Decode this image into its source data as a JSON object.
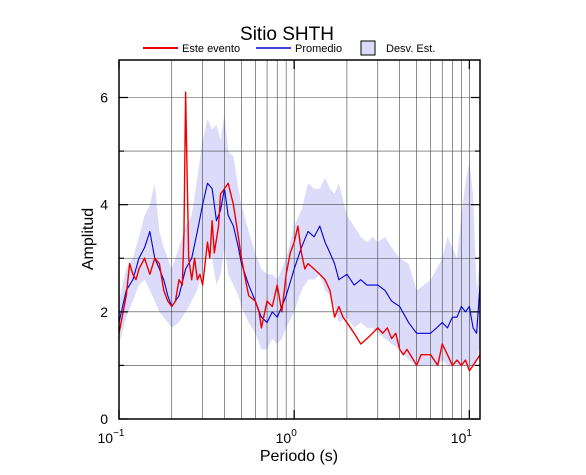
{
  "chart_data": {
    "type": "line",
    "title": "Sitio SHTH",
    "xlabel": "Periodo (s)",
    "ylabel": "Amplitud",
    "xscale": "log",
    "xlim": [
      0.1,
      11.5
    ],
    "ylim": [
      0,
      6.7
    ],
    "grid": true,
    "legend_position": "top",
    "x_tick_labels": [
      {
        "value": 0.1,
        "base": "10",
        "exp": "−1"
      },
      {
        "value": 1,
        "base": "10",
        "exp": "0"
      },
      {
        "value": 10,
        "base": "10",
        "exp": "1"
      }
    ],
    "y_ticks": [
      0,
      2,
      4,
      6
    ],
    "legend": {
      "evento_label": "Este evento",
      "promedio_label": "Promedio",
      "desv_label": "Desv. Est."
    },
    "colors": {
      "evento": "#ee0000",
      "promedio": "#0000dd",
      "desv_fill": "#dcdcfa"
    },
    "series": [
      {
        "name": "Este evento",
        "x": [
          0.1,
          0.11,
          0.115,
          0.12,
          0.125,
          0.13,
          0.14,
          0.15,
          0.16,
          0.17,
          0.18,
          0.19,
          0.2,
          0.21,
          0.22,
          0.23,
          0.235,
          0.24,
          0.245,
          0.25,
          0.26,
          0.27,
          0.28,
          0.29,
          0.3,
          0.31,
          0.32,
          0.33,
          0.34,
          0.35,
          0.37,
          0.38,
          0.4,
          0.42,
          0.45,
          0.48,
          0.5,
          0.52,
          0.55,
          0.6,
          0.63,
          0.65,
          0.7,
          0.75,
          0.8,
          0.85,
          0.9,
          0.95,
          1.0,
          1.05,
          1.1,
          1.15,
          1.2,
          1.3,
          1.4,
          1.5,
          1.6,
          1.7,
          1.8,
          1.9,
          2.0,
          2.2,
          2.4,
          2.6,
          2.8,
          3.0,
          3.2,
          3.4,
          3.6,
          3.8,
          4.0,
          4.2,
          4.4,
          4.6,
          4.8,
          5.0,
          5.3,
          5.6,
          6.0,
          6.3,
          6.6,
          7.0,
          7.5,
          8.0,
          8.5,
          9.0,
          9.5,
          10.0,
          10.5,
          11.0,
          11.5
        ],
        "y": [
          1.6,
          2.3,
          2.9,
          2.7,
          2.6,
          2.8,
          3.0,
          2.7,
          3.0,
          2.9,
          2.4,
          2.2,
          2.1,
          2.2,
          2.6,
          2.5,
          3.5,
          6.1,
          4.5,
          3.0,
          2.6,
          3.0,
          2.6,
          2.7,
          2.5,
          2.9,
          3.3,
          3.0,
          3.7,
          3.1,
          3.6,
          4.2,
          4.3,
          4.4,
          4.0,
          3.4,
          3.0,
          2.7,
          2.3,
          2.2,
          2.0,
          1.7,
          2.2,
          2.1,
          2.5,
          2.0,
          2.7,
          3.1,
          3.3,
          3.6,
          3.1,
          2.8,
          2.9,
          2.8,
          2.7,
          2.6,
          2.4,
          1.9,
          2.1,
          1.9,
          1.8,
          1.6,
          1.4,
          1.5,
          1.6,
          1.7,
          1.6,
          1.7,
          1.5,
          1.6,
          1.3,
          1.2,
          1.3,
          1.2,
          1.1,
          1.0,
          1.2,
          1.2,
          1.2,
          1.1,
          1.0,
          1.4,
          1.2,
          1.0,
          1.1,
          1.0,
          1.1,
          0.9,
          1.0,
          1.1,
          1.2
        ]
      },
      {
        "name": "Promedio",
        "x": [
          0.1,
          0.11,
          0.12,
          0.13,
          0.14,
          0.15,
          0.16,
          0.17,
          0.18,
          0.19,
          0.2,
          0.22,
          0.24,
          0.26,
          0.28,
          0.3,
          0.32,
          0.34,
          0.36,
          0.38,
          0.4,
          0.42,
          0.45,
          0.48,
          0.5,
          0.55,
          0.6,
          0.65,
          0.7,
          0.75,
          0.8,
          0.85,
          0.9,
          1.0,
          1.1,
          1.2,
          1.3,
          1.4,
          1.5,
          1.6,
          1.7,
          1.8,
          2.0,
          2.2,
          2.4,
          2.6,
          2.8,
          3.0,
          3.3,
          3.6,
          4.0,
          4.5,
          5.0,
          5.5,
          6.0,
          6.5,
          7.0,
          7.5,
          8.0,
          8.5,
          9.0,
          9.5,
          10.0,
          10.5,
          11.0,
          11.5
        ],
        "y": [
          1.8,
          2.4,
          2.6,
          3.0,
          3.2,
          3.5,
          3.0,
          2.8,
          2.6,
          2.3,
          2.1,
          2.3,
          2.8,
          3.0,
          3.5,
          4.0,
          4.4,
          4.3,
          3.7,
          3.9,
          4.3,
          3.8,
          3.6,
          3.2,
          2.9,
          2.5,
          2.2,
          1.9,
          1.8,
          2.0,
          1.9,
          2.1,
          2.3,
          2.8,
          3.2,
          3.5,
          3.4,
          3.6,
          3.3,
          3.1,
          2.9,
          2.6,
          2.7,
          2.5,
          2.6,
          2.5,
          2.5,
          2.5,
          2.4,
          2.2,
          2.1,
          1.8,
          1.6,
          1.6,
          1.6,
          1.7,
          1.8,
          1.7,
          1.9,
          1.9,
          2.1,
          2.0,
          2.1,
          1.7,
          1.6,
          2.5
        ]
      },
      {
        "name": "Desv. Est.",
        "x": [
          0.1,
          0.11,
          0.12,
          0.13,
          0.14,
          0.15,
          0.16,
          0.17,
          0.18,
          0.19,
          0.2,
          0.22,
          0.24,
          0.26,
          0.28,
          0.3,
          0.32,
          0.34,
          0.36,
          0.38,
          0.4,
          0.42,
          0.45,
          0.48,
          0.5,
          0.55,
          0.6,
          0.65,
          0.7,
          0.75,
          0.8,
          0.85,
          0.9,
          1.0,
          1.1,
          1.2,
          1.3,
          1.4,
          1.5,
          1.6,
          1.7,
          1.8,
          2.0,
          2.2,
          2.4,
          2.6,
          2.8,
          3.0,
          3.3,
          3.6,
          4.0,
          4.5,
          5.0,
          5.5,
          6.0,
          6.5,
          7.0,
          7.5,
          8.0,
          8.5,
          9.0,
          9.5,
          10.0,
          10.5,
          11.0,
          11.5
        ],
        "upper": [
          2.2,
          2.8,
          3.0,
          3.4,
          3.8,
          4.0,
          4.4,
          3.5,
          3.2,
          3.0,
          2.8,
          3.2,
          3.6,
          3.8,
          4.5,
          5.2,
          5.6,
          5.4,
          5.5,
          5.2,
          5.7,
          5.0,
          4.9,
          4.3,
          4.0,
          3.5,
          3.1,
          2.8,
          2.7,
          2.7,
          2.6,
          2.8,
          3.0,
          3.6,
          3.9,
          4.4,
          4.3,
          4.3,
          4.5,
          4.3,
          4.2,
          4.4,
          3.8,
          3.6,
          3.4,
          3.3,
          3.4,
          3.3,
          3.4,
          3.2,
          3.0,
          2.9,
          2.4,
          2.5,
          2.6,
          2.8,
          3.0,
          3.4,
          3.2,
          3.0,
          3.8,
          4.4,
          4.8,
          4.2,
          2.4,
          3.0
        ],
        "lower": [
          1.4,
          1.9,
          2.2,
          2.5,
          2.6,
          2.4,
          2.2,
          2.0,
          1.9,
          1.8,
          1.7,
          1.8,
          2.0,
          2.2,
          2.4,
          2.8,
          3.3,
          3.0,
          2.5,
          2.7,
          3.2,
          2.7,
          2.5,
          2.3,
          2.1,
          1.8,
          1.6,
          1.3,
          1.3,
          1.5,
          1.4,
          1.5,
          1.7,
          2.0,
          2.4,
          2.6,
          2.6,
          2.7,
          2.4,
          2.3,
          2.1,
          1.8,
          1.9,
          1.7,
          1.8,
          1.7,
          1.7,
          1.6,
          1.5,
          1.4,
          1.3,
          1.1,
          1.0,
          1.0,
          1.0,
          1.0,
          1.1,
          1.0,
          1.0,
          1.0,
          1.0,
          1.0,
          1.0,
          1.0,
          1.1,
          1.4
        ]
      }
    ]
  }
}
